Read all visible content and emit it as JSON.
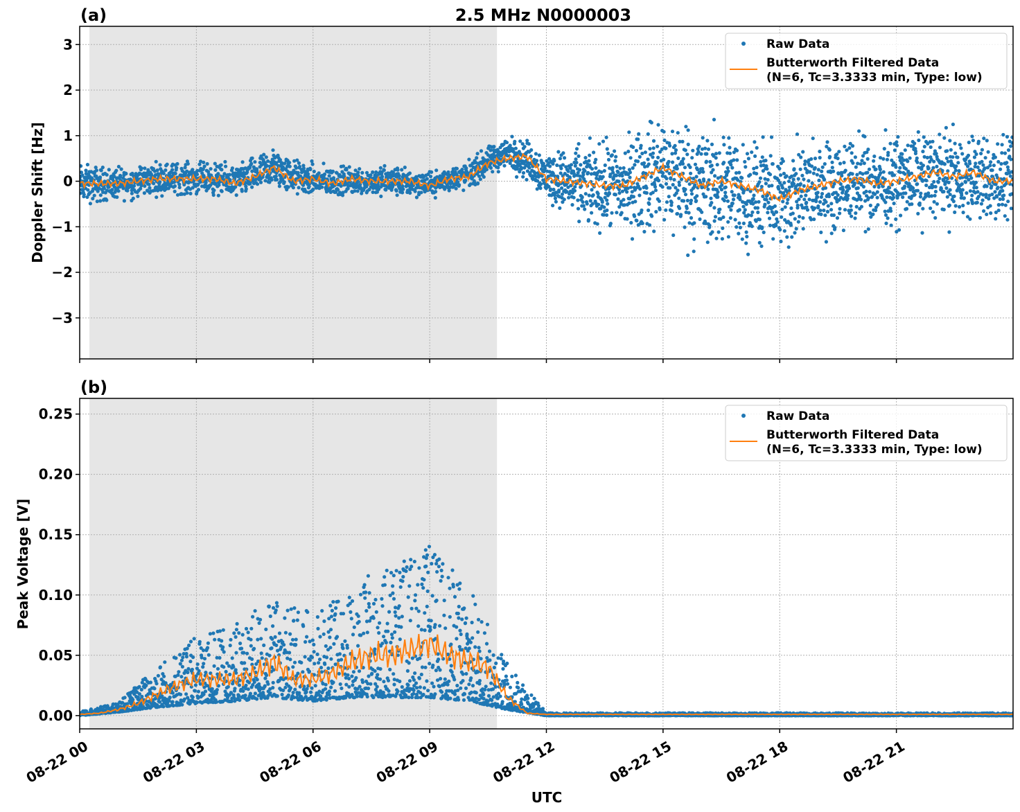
{
  "chart_data": [
    {
      "type": "scatter",
      "panel_label": "(a)",
      "title": "2.5 MHz N0000003",
      "xlabel": "",
      "ylabel": "Doppler Shift [Hz]",
      "xlim_hours": [
        0,
        24
      ],
      "ylim": [
        -3.9,
        3.4
      ],
      "yticks": [
        3,
        2,
        1,
        0,
        -1,
        -2,
        -3
      ],
      "ytick_labels": [
        "3",
        "2",
        "1",
        "0",
        "−1",
        "−2",
        "−3"
      ],
      "grid": true,
      "shaded_region_hours": [
        0.25,
        10.73
      ],
      "shaded_color": "#e6e6e6",
      "legend": {
        "position": "top-right",
        "entries": [
          "Raw Data",
          "Butterworth Filtered Data",
          "(N=6, Tc=3.3333 min, Type: low)"
        ]
      },
      "series": [
        {
          "name": "Raw Data",
          "color": "#1f77b4",
          "kind": "scatter",
          "x_hours": [
            0,
            1,
            2,
            3,
            4,
            5,
            6,
            7,
            8,
            9,
            10,
            11,
            12,
            13,
            14,
            15,
            16,
            17,
            18,
            19,
            20,
            21,
            22,
            23,
            24
          ],
          "center": [
            -0.05,
            -0.05,
            0.05,
            0.05,
            0,
            0.2,
            0,
            0,
            0,
            -0.05,
            0.1,
            0.5,
            0.1,
            -0.1,
            -0.1,
            0.1,
            -0.1,
            -0.2,
            -0.3,
            -0.1,
            -0.05,
            0,
            0.1,
            0,
            0
          ],
          "half_spread": [
            0.5,
            0.4,
            0.4,
            0.4,
            0.4,
            0.5,
            0.4,
            0.35,
            0.4,
            0.3,
            0.35,
            0.4,
            0.6,
            1.0,
            1.2,
            1.5,
            1.6,
            1.4,
            1.3,
            1.2,
            1.1,
            1.1,
            1.1,
            1.1,
            1.0
          ]
        },
        {
          "name": "Butterworth Filtered Data",
          "color": "#ff7f0e",
          "kind": "line",
          "x_hours": [
            0,
            0.5,
            1,
            1.5,
            2,
            2.5,
            3,
            3.5,
            4,
            4.5,
            5,
            5.5,
            6,
            6.5,
            7,
            7.5,
            8,
            8.5,
            9,
            9.5,
            10,
            10.5,
            11,
            11.5,
            12,
            12.5,
            13,
            13.5,
            14,
            14.5,
            15,
            15.5,
            16,
            16.5,
            17,
            17.5,
            18,
            18.5,
            19,
            19.5,
            20,
            20.5,
            21,
            21.5,
            22,
            22.5,
            23,
            23.5,
            24
          ],
          "values": [
            -0.05,
            -0.05,
            -0.05,
            0.0,
            0.05,
            0.05,
            0.05,
            0.05,
            -0.05,
            0.1,
            0.3,
            0.0,
            0.05,
            -0.05,
            0.05,
            0.0,
            0.0,
            0.0,
            -0.1,
            0.05,
            0.1,
            0.4,
            0.5,
            0.55,
            0.05,
            0.0,
            -0.05,
            -0.1,
            -0.1,
            0.1,
            0.3,
            0.1,
            -0.1,
            0.0,
            -0.1,
            -0.2,
            -0.4,
            -0.2,
            -0.1,
            0.0,
            0.05,
            -0.05,
            0.0,
            0.1,
            0.2,
            0.1,
            0.2,
            0.0,
            0.0
          ]
        }
      ]
    },
    {
      "type": "scatter",
      "panel_label": "(b)",
      "xlabel": "UTC",
      "ylabel": "Peak Voltage [V]",
      "xlim_hours": [
        0,
        24
      ],
      "ylim": [
        -0.011,
        0.263
      ],
      "yticks": [
        0.25,
        0.2,
        0.15,
        0.1,
        0.05,
        0.0
      ],
      "ytick_labels": [
        "0.25",
        "0.20",
        "0.15",
        "0.10",
        "0.05",
        "0.00"
      ],
      "xticks_hours": [
        0,
        3,
        6,
        9,
        12,
        15,
        18,
        21
      ],
      "xtick_labels": [
        "08-22 00",
        "08-22 03",
        "08-22 06",
        "08-22 09",
        "08-22 12",
        "08-22 15",
        "08-22 18",
        "08-22 21"
      ],
      "grid": true,
      "shaded_region_hours": [
        0.25,
        10.73
      ],
      "legend": {
        "position": "top-right",
        "entries": [
          "Raw Data",
          "Butterworth Filtered Data",
          "(N=6, Tc=3.3333 min, Type: low)"
        ]
      },
      "series": [
        {
          "name": "Raw Data",
          "color": "#1f77b4",
          "kind": "scatter",
          "x_hours": [
            0,
            1,
            2,
            3,
            4,
            5,
            6,
            7,
            8,
            9,
            10,
            11,
            12,
            13,
            14,
            15,
            16,
            17,
            18,
            19,
            20,
            21,
            22,
            23,
            24
          ],
          "lower": [
            0,
            0.003,
            0.007,
            0.01,
            0.012,
            0.015,
            0.012,
            0.015,
            0.015,
            0.015,
            0.012,
            0.005,
            0,
            0,
            0,
            0,
            0,
            0,
            0,
            0,
            0,
            0,
            0,
            0,
            0
          ],
          "upper": [
            0.003,
            0.01,
            0.04,
            0.06,
            0.07,
            0.09,
            0.08,
            0.1,
            0.12,
            0.13,
            0.1,
            0.04,
            0.002,
            0.002,
            0.002,
            0.002,
            0.002,
            0.002,
            0.002,
            0.002,
            0.002,
            0.002,
            0.002,
            0.002,
            0.002
          ]
        },
        {
          "name": "Butterworth Filtered Data",
          "color": "#ff7f0e",
          "kind": "line",
          "x_hours": [
            0,
            0.5,
            1,
            1.5,
            2,
            2.5,
            3,
            3.5,
            4,
            4.5,
            5,
            5.5,
            6,
            6.5,
            7,
            7.5,
            8,
            8.5,
            9,
            9.5,
            10,
            10.5,
            11,
            11.5,
            12,
            13,
            14,
            15,
            16,
            17,
            18,
            19,
            20,
            21,
            22,
            23,
            24
          ],
          "values": [
            0.001,
            0.002,
            0.005,
            0.01,
            0.018,
            0.025,
            0.03,
            0.03,
            0.03,
            0.035,
            0.045,
            0.03,
            0.03,
            0.035,
            0.045,
            0.05,
            0.05,
            0.055,
            0.06,
            0.05,
            0.045,
            0.04,
            0.015,
            0.002,
            0.001,
            0.001,
            0.001,
            0.001,
            0.001,
            0.001,
            0.001,
            0.001,
            0.001,
            0.001,
            0.001,
            0.001,
            0.001
          ]
        }
      ]
    }
  ]
}
